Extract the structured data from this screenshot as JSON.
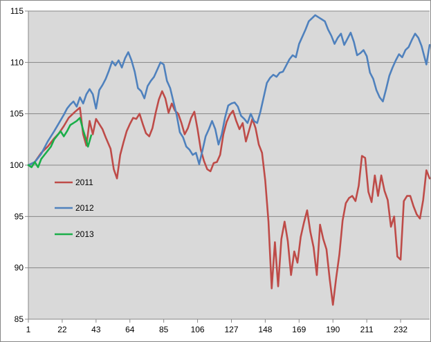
{
  "chart_data": {
    "type": "line",
    "title": "",
    "xlabel": "",
    "ylabel": "",
    "ylim": [
      85,
      115
    ],
    "xlim": [
      1,
      250
    ],
    "y_ticks": [
      85,
      90,
      95,
      100,
      105,
      110,
      115
    ],
    "x_ticks": [
      1,
      22,
      43,
      64,
      85,
      106,
      127,
      148,
      169,
      190,
      211,
      232
    ],
    "grid": "horizontal",
    "legend_position": "left-center",
    "plot_background": "#d9d9d9",
    "series": [
      {
        "name": "2011",
        "color": "#be4b48",
        "points": [
          [
            1,
            100
          ],
          [
            5,
            100.3
          ],
          [
            9,
            101.2
          ],
          [
            13,
            101.8
          ],
          [
            17,
            102.6
          ],
          [
            20,
            103.1
          ],
          [
            23,
            103.8
          ],
          [
            26,
            104.6
          ],
          [
            30,
            105.2
          ],
          [
            33,
            105.6
          ],
          [
            35,
            103
          ],
          [
            37,
            101.9
          ],
          [
            39,
            104.3
          ],
          [
            41,
            103
          ],
          [
            43,
            104.5
          ],
          [
            45,
            104
          ],
          [
            47,
            103.5
          ],
          [
            49,
            102.7
          ],
          [
            52,
            101.6
          ],
          [
            54,
            99.6
          ],
          [
            56,
            98.7
          ],
          [
            58,
            101
          ],
          [
            60,
            102.2
          ],
          [
            62,
            103.3
          ],
          [
            64,
            104
          ],
          [
            66,
            104.6
          ],
          [
            68,
            104.5
          ],
          [
            70,
            105
          ],
          [
            72,
            104
          ],
          [
            74,
            103.1
          ],
          [
            76,
            102.8
          ],
          [
            78,
            103.6
          ],
          [
            80,
            105.1
          ],
          [
            82,
            106.4
          ],
          [
            84,
            107.2
          ],
          [
            86,
            106.5
          ],
          [
            88,
            105.1
          ],
          [
            90,
            106
          ],
          [
            92,
            105.3
          ],
          [
            94,
            105
          ],
          [
            96,
            104.1
          ],
          [
            98,
            103
          ],
          [
            100,
            103.6
          ],
          [
            102,
            104.6
          ],
          [
            104,
            105.2
          ],
          [
            106,
            103.5
          ],
          [
            108,
            101.5
          ],
          [
            110,
            100.4
          ],
          [
            112,
            99.6
          ],
          [
            114,
            99.4
          ],
          [
            116,
            100.2
          ],
          [
            118,
            100.3
          ],
          [
            120,
            101
          ],
          [
            122,
            103
          ],
          [
            124,
            104.2
          ],
          [
            126,
            104.9
          ],
          [
            128,
            105.3
          ],
          [
            130,
            104.3
          ],
          [
            132,
            103.5
          ],
          [
            134,
            104.1
          ],
          [
            136,
            102.3
          ],
          [
            138,
            103.4
          ],
          [
            140,
            104.5
          ],
          [
            142,
            103.6
          ],
          [
            144,
            102
          ],
          [
            146,
            101.2
          ],
          [
            148,
            98.5
          ],
          [
            150,
            94.5
          ],
          [
            152,
            88
          ],
          [
            154,
            92.5
          ],
          [
            156,
            88.2
          ],
          [
            158,
            92.8
          ],
          [
            160,
            94.5
          ],
          [
            162,
            92.6
          ],
          [
            164,
            89.3
          ],
          [
            166,
            91.6
          ],
          [
            168,
            90.5
          ],
          [
            170,
            93
          ],
          [
            172,
            94.4
          ],
          [
            174,
            95.6
          ],
          [
            176,
            93.5
          ],
          [
            178,
            92
          ],
          [
            180,
            89.3
          ],
          [
            182,
            94.2
          ],
          [
            184,
            92.8
          ],
          [
            186,
            91.8
          ],
          [
            188,
            88.9
          ],
          [
            190,
            86.4
          ],
          [
            192,
            89
          ],
          [
            194,
            91.3
          ],
          [
            196,
            94.6
          ],
          [
            198,
            96.3
          ],
          [
            200,
            96.8
          ],
          [
            202,
            97
          ],
          [
            204,
            96.5
          ],
          [
            206,
            98
          ],
          [
            208,
            100.9
          ],
          [
            210,
            100.7
          ],
          [
            212,
            97.4
          ],
          [
            214,
            96.4
          ],
          [
            216,
            99
          ],
          [
            218,
            97
          ],
          [
            220,
            99
          ],
          [
            222,
            97.5
          ],
          [
            224,
            96.6
          ],
          [
            226,
            94
          ],
          [
            228,
            95
          ],
          [
            230,
            91.1
          ],
          [
            232,
            90.8
          ],
          [
            234,
            96.5
          ],
          [
            236,
            97
          ],
          [
            238,
            97
          ],
          [
            240,
            96
          ],
          [
            242,
            95.2
          ],
          [
            244,
            94.8
          ],
          [
            246,
            96.6
          ],
          [
            248,
            99.5
          ],
          [
            250,
            98.7
          ]
        ]
      },
      {
        "name": "2012",
        "color": "#4f81bd",
        "points": [
          [
            1,
            100
          ],
          [
            5,
            100.3
          ],
          [
            9,
            101.1
          ],
          [
            13,
            102.3
          ],
          [
            17,
            103.3
          ],
          [
            20,
            104.1
          ],
          [
            23,
            104.9
          ],
          [
            25,
            105.5
          ],
          [
            27,
            105.9
          ],
          [
            29,
            106.2
          ],
          [
            31,
            105.7
          ],
          [
            33,
            106.6
          ],
          [
            35,
            106
          ],
          [
            37,
            106.9
          ],
          [
            39,
            107.4
          ],
          [
            41,
            106.9
          ],
          [
            43,
            105.5
          ],
          [
            45,
            107.3
          ],
          [
            47,
            107.8
          ],
          [
            49,
            108.4
          ],
          [
            51,
            109.2
          ],
          [
            53,
            110.1
          ],
          [
            55,
            109.7
          ],
          [
            57,
            110.2
          ],
          [
            59,
            109.5
          ],
          [
            61,
            110.4
          ],
          [
            63,
            111
          ],
          [
            65,
            110.2
          ],
          [
            67,
            109.1
          ],
          [
            69,
            107.5
          ],
          [
            71,
            107.2
          ],
          [
            73,
            106.5
          ],
          [
            75,
            107.7
          ],
          [
            77,
            108.2
          ],
          [
            79,
            108.6
          ],
          [
            81,
            109.3
          ],
          [
            83,
            110
          ],
          [
            85,
            109.8
          ],
          [
            87,
            108.2
          ],
          [
            89,
            107.5
          ],
          [
            91,
            106.2
          ],
          [
            93,
            104.9
          ],
          [
            95,
            103.2
          ],
          [
            97,
            102.7
          ],
          [
            99,
            101.8
          ],
          [
            101,
            101.5
          ],
          [
            103,
            101
          ],
          [
            105,
            101.2
          ],
          [
            107,
            100.1
          ],
          [
            109,
            101.4
          ],
          [
            111,
            102.8
          ],
          [
            113,
            103.5
          ],
          [
            115,
            104.3
          ],
          [
            117,
            103.5
          ],
          [
            119,
            102
          ],
          [
            121,
            103
          ],
          [
            123,
            104.6
          ],
          [
            125,
            105.8
          ],
          [
            127,
            106
          ],
          [
            129,
            106.1
          ],
          [
            131,
            105.7
          ],
          [
            133,
            104.8
          ],
          [
            135,
            104.5
          ],
          [
            137,
            104.1
          ],
          [
            139,
            105
          ],
          [
            141,
            104.3
          ],
          [
            143,
            104.1
          ],
          [
            145,
            105.2
          ],
          [
            147,
            106.6
          ],
          [
            149,
            108
          ],
          [
            151,
            108.5
          ],
          [
            153,
            108.8
          ],
          [
            155,
            108.6
          ],
          [
            157,
            109
          ],
          [
            159,
            109.1
          ],
          [
            161,
            109.7
          ],
          [
            163,
            110.3
          ],
          [
            165,
            110.7
          ],
          [
            167,
            110.5
          ],
          [
            169,
            111.8
          ],
          [
            171,
            112.5
          ],
          [
            173,
            113.2
          ],
          [
            175,
            114
          ],
          [
            177,
            114.3
          ],
          [
            179,
            114.6
          ],
          [
            181,
            114.4
          ],
          [
            183,
            114.2
          ],
          [
            185,
            114
          ],
          [
            187,
            113.2
          ],
          [
            189,
            112.6
          ],
          [
            191,
            111.8
          ],
          [
            193,
            112.4
          ],
          [
            195,
            112.8
          ],
          [
            197,
            111.7
          ],
          [
            199,
            112.3
          ],
          [
            201,
            112.9
          ],
          [
            203,
            112
          ],
          [
            205,
            110.7
          ],
          [
            207,
            110.9
          ],
          [
            209,
            111.2
          ],
          [
            211,
            110.6
          ],
          [
            213,
            109
          ],
          [
            215,
            108.4
          ],
          [
            217,
            107.3
          ],
          [
            219,
            106.6
          ],
          [
            221,
            106.2
          ],
          [
            223,
            107.4
          ],
          [
            225,
            108.7
          ],
          [
            227,
            109.5
          ],
          [
            229,
            110.2
          ],
          [
            231,
            110.8
          ],
          [
            233,
            110.5
          ],
          [
            235,
            111.2
          ],
          [
            237,
            111.5
          ],
          [
            239,
            112.2
          ],
          [
            241,
            112.8
          ],
          [
            243,
            112.4
          ],
          [
            245,
            111.6
          ],
          [
            247,
            110.4
          ],
          [
            248,
            109.8
          ],
          [
            250,
            111.7
          ]
        ]
      },
      {
        "name": "2013",
        "color": "#1aae49",
        "points": [
          [
            1,
            100
          ],
          [
            3,
            99.8
          ],
          [
            5,
            100.3
          ],
          [
            7,
            99.8
          ],
          [
            9,
            100.6
          ],
          [
            11,
            101
          ],
          [
            13,
            101.4
          ],
          [
            15,
            101.8
          ],
          [
            17,
            102.5
          ],
          [
            19,
            102.9
          ],
          [
            21,
            103.3
          ],
          [
            23,
            102.8
          ],
          [
            25,
            103.3
          ],
          [
            27,
            103.9
          ],
          [
            29,
            104.1
          ],
          [
            31,
            104.3
          ],
          [
            33,
            104.6
          ],
          [
            35,
            103.4
          ],
          [
            37,
            102.4
          ],
          [
            38,
            101.8
          ],
          [
            40,
            102.9
          ]
        ]
      }
    ]
  }
}
